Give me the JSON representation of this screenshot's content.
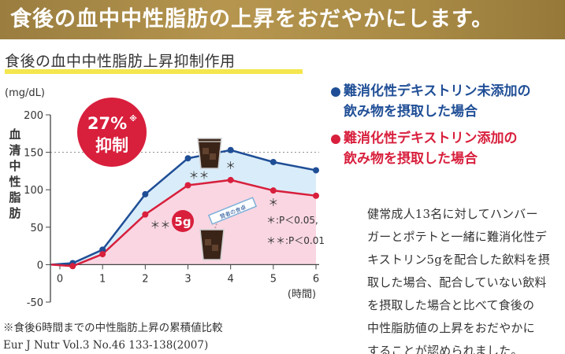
{
  "banner": {
    "text": "食後の血中中性脂肪の上昇をおだやかにします。"
  },
  "subtitle": {
    "text": "食後の血中中性脂肪上昇抑制作用"
  },
  "legend": {
    "blue_line1": "難消化性デキストリン未添加の",
    "blue_line2": "飲み物を摂取した場合",
    "red_line1": "難消化性デキストリン添加の",
    "red_line2": "飲み物を摂取した場合",
    "blue_color": "#1f4e96",
    "red_color": "#d81f3c"
  },
  "badge": {
    "percent": "27%",
    "mark": "※",
    "label": "抑制"
  },
  "packet": {
    "dose": "5g",
    "text": "賢者の食卓"
  },
  "significance": {
    "single": "＊:P＜0.05,",
    "double": "＊＊:P＜0.01"
  },
  "description": {
    "lines": [
      "健常成人13名に対してハンバー",
      "ガーとポテトと一緒に難消化性デ",
      "キストリン5gを配合した飲料を摂",
      "取した場合、配合していない飲料",
      "を摂取した場合と比べて食後の",
      "中性脂肪値の上昇をおだやかに",
      "することが認められました。"
    ]
  },
  "footnote": {
    "line1": "※食後6時間までの中性脂肪上昇の累積値比較",
    "line2": "Eur J Nutr Vol.3 No.46 133-138(2007)"
  },
  "chart_data": {
    "type": "line",
    "yunit": "(mg/dL)",
    "ylabel": "血清中性脂肪",
    "xlabel": "(時間)",
    "ylim": [
      -50,
      200
    ],
    "xlim": [
      0,
      6
    ],
    "yticks": [
      "200",
      "150",
      "100",
      "50",
      "0",
      "-50"
    ],
    "xticks": [
      "0",
      "1",
      "2",
      "3",
      "4",
      "5",
      "6"
    ],
    "x": [
      -0.2,
      0.3,
      1,
      2,
      3,
      4,
      5,
      6
    ],
    "series": [
      {
        "name": "難消化性デキストリン未添加の飲み物を摂取した場合",
        "color": "#1f4e96",
        "values": [
          0,
          2,
          20,
          94,
          142,
          153,
          137,
          126
        ]
      },
      {
        "name": "難消化性デキストリン添加の飲み物を摂取した場合",
        "color": "#d81f3c",
        "values": [
          0,
          -2,
          14,
          67,
          106,
          113,
          99,
          92
        ]
      }
    ],
    "significance_marks": [
      {
        "x": 2,
        "mark": "＊＊"
      },
      {
        "x": 3,
        "mark": "＊＊"
      },
      {
        "x": 4,
        "mark": "＊"
      },
      {
        "x": 5,
        "mark": "＊"
      }
    ],
    "grid": "dashed at 150",
    "fill_between": "#d9ecf9",
    "fill_below": "#f9d6e2"
  }
}
